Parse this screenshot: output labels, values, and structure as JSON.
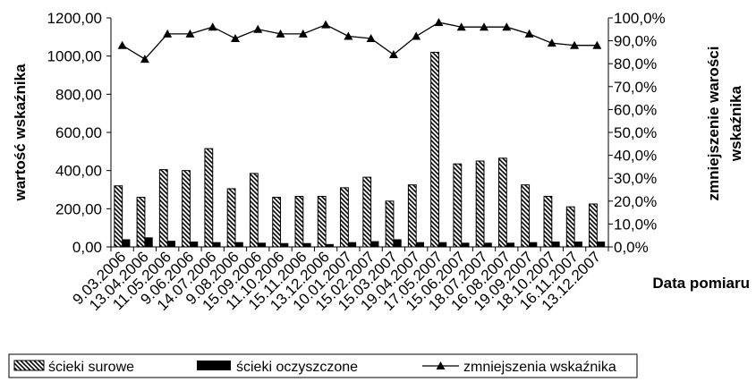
{
  "chart_data": {
    "type": "bar",
    "categories": [
      "9.03.2006",
      "13.04.2006",
      "11.05.2006",
      "9.06.2006",
      "14.07.2006",
      "9.08.2006",
      "15.09.2006",
      "11.10.2006",
      "15.11.2006",
      "13.12.2006",
      "10.01.2007",
      "15.02.2007",
      "15.03.2007",
      "19.04.2007",
      "17.05.2007",
      "15.06.2007",
      "18.07.2007",
      "16.08.2007",
      "19.09.2007",
      "18.10.2007",
      "16.11.2007",
      "13.12.2007"
    ],
    "series": [
      {
        "name": "ścieki surowe",
        "type": "bar",
        "axis": "left",
        "style": "hatched",
        "color": "#000000",
        "values": [
          320,
          260,
          405,
          400,
          515,
          305,
          385,
          260,
          265,
          265,
          310,
          365,
          240,
          325,
          1020,
          435,
          450,
          465,
          325,
          265,
          210,
          225
        ]
      },
      {
        "name": "ścieki oczyszczone",
        "type": "bar",
        "axis": "left",
        "style": "solid",
        "color": "#000000",
        "values": [
          40,
          50,
          32,
          28,
          25,
          25,
          22,
          20,
          20,
          15,
          25,
          30,
          40,
          25,
          25,
          22,
          22,
          22,
          25,
          28,
          28,
          28
        ]
      },
      {
        "name": "zmniejszenia wskaźnika",
        "type": "line",
        "axis": "right",
        "marker": "triangle",
        "color": "#000000",
        "values": [
          88,
          82,
          93,
          93,
          96,
          91,
          95,
          93,
          93,
          97,
          92,
          91,
          84,
          92,
          98,
          96,
          96,
          96,
          93,
          89,
          88,
          88
        ]
      }
    ],
    "xlabel": "Data pomiaru",
    "ylabel": "wartość wskaźnika",
    "y2label": [
      "zmniejszenie warości",
      "wskaźnika"
    ],
    "ylim": [
      0,
      1200
    ],
    "y_ticks": [
      0,
      200,
      400,
      600,
      800,
      1000,
      1200
    ],
    "y_tick_labels": [
      "0,00",
      "200,00",
      "400,00",
      "600,00",
      "800,00",
      "1000,00",
      "1200,00"
    ],
    "y2lim": [
      0,
      100
    ],
    "y2_ticks": [
      0,
      10,
      20,
      30,
      40,
      50,
      60,
      70,
      80,
      90,
      100
    ],
    "y2_tick_labels": [
      "0,0%",
      "10,0%",
      "20,0%",
      "30,0%",
      "40,0%",
      "50,0%",
      "60,0%",
      "70,0%",
      "80,0%",
      "90,0%",
      "100,0%"
    ],
    "grid": false,
    "legend": "bottom"
  }
}
